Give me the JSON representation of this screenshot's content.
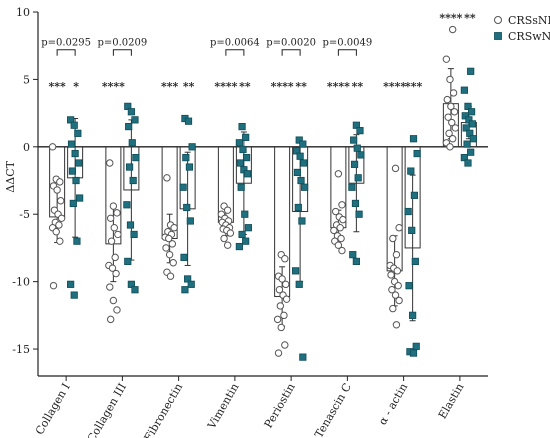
{
  "chart_data": {
    "type": "bar",
    "ylabel": "ΔΔCT",
    "ylim": [
      -17,
      10
    ],
    "yticks": [
      10,
      5,
      0,
      -5,
      -10,
      -15
    ],
    "categories": [
      "Collagen I",
      "Collagen III",
      "Fibronectin",
      "Vimentin",
      "Periostin",
      "Tenascin C",
      "α - actin",
      "Elastin"
    ],
    "legend": {
      "position": "top-right",
      "entries": [
        "CRSsNP",
        "CRSwNP"
      ]
    },
    "colors": {
      "CRSsNP": "#ffffff",
      "CRSwNP": "#1f6f7e",
      "marker_edge": "#555555"
    },
    "series": [
      {
        "name": "CRSsNP",
        "values": [
          -5.2,
          -7.2,
          -6.8,
          -5.6,
          -11.1,
          -6.0,
          -9.2,
          3.2
        ],
        "errors": [
          1.9,
          2.8,
          1.8,
          1.0,
          2.2,
          1.3,
          2.6,
          2.6
        ],
        "points": [
          [
            0.0,
            -2.4,
            -2.6,
            -2.9,
            -3.2,
            -4.0,
            -4.7,
            -5.0,
            -5.3,
            -5.6,
            -5.8,
            -6.0,
            -6.3,
            -7.0,
            -10.3
          ],
          [
            -1.2,
            -4.4,
            -4.9,
            -5.3,
            -6.0,
            -6.5,
            -7.0,
            -8.2,
            -8.8,
            -9.0,
            -9.4,
            -10.4,
            -11.4,
            -12.1,
            -12.8
          ],
          [
            -2.3,
            -5.8,
            -6.0,
            -6.3,
            -6.5,
            -6.7,
            -6.8,
            -7.2,
            -7.5,
            -8.0,
            -8.6,
            -9.3,
            -9.6
          ],
          [
            -4.4,
            -4.7,
            -5.0,
            -5.3,
            -5.5,
            -5.6,
            -5.8,
            -6.0,
            -6.1,
            -6.2,
            -6.4,
            -6.8,
            -7.3
          ],
          [
            -8.0,
            -8.3,
            -9.6,
            -9.8,
            -10.2,
            -10.6,
            -11.0,
            -11.3,
            -11.8,
            -12.5,
            -12.8,
            -13.4,
            -14.7,
            -15.3
          ],
          [
            -2.0,
            -4.3,
            -4.8,
            -5.2,
            -5.4,
            -5.8,
            -6.0,
            -6.2,
            -6.6,
            -6.8,
            -7.0,
            -7.3,
            -7.7
          ],
          [
            -1.6,
            -6.0,
            -6.8,
            -8.0,
            -8.8,
            -9.0,
            -9.2,
            -9.5,
            -10.0,
            -10.3,
            -10.6,
            -11.0,
            -11.4,
            -12.0,
            -13.2
          ],
          [
            8.7,
            6.5,
            5.0,
            4.0,
            3.5,
            3.0,
            2.6,
            2.2,
            1.8,
            1.4,
            1.0,
            0.6,
            0.3,
            0.0
          ]
        ]
      },
      {
        "name": "CRSwNP",
        "values": [
          -2.3,
          -3.2,
          -4.6,
          -2.7,
          -4.8,
          -2.7,
          -7.5,
          1.8
        ],
        "errors": [
          4.4,
          5.2,
          4.2,
          3.8,
          5.2,
          3.6,
          5.4,
          1.2
        ],
        "points": [
          [
            2.0,
            1.6,
            1.0,
            0.2,
            -0.5,
            -1.2,
            -1.8,
            -2.5,
            -3.8,
            -4.2,
            -7.0,
            -10.2,
            -11.0
          ],
          [
            3.0,
            2.6,
            2.0,
            1.5,
            0.3,
            -0.8,
            -1.5,
            -2.5,
            -4.3,
            -5.8,
            -6.5,
            -8.5,
            -10.2,
            -10.6
          ],
          [
            2.1,
            1.9,
            0.0,
            -0.8,
            -1.5,
            -3.0,
            -4.5,
            -5.5,
            -8.2,
            -9.8,
            -10.2,
            -10.6
          ],
          [
            1.5,
            0.7,
            0.3,
            -0.2,
            -0.8,
            -1.2,
            -1.7,
            -2.0,
            -3.0,
            -5.0,
            -6.0,
            -6.5,
            -7.0,
            -7.4
          ],
          [
            0.5,
            0.2,
            -0.3,
            -0.7,
            -1.2,
            -1.9,
            -2.5,
            -3.0,
            -4.5,
            -5.5,
            -9.2,
            -10.2,
            -15.6
          ],
          [
            1.6,
            1.2,
            0.5,
            -0.1,
            -0.6,
            -1.3,
            -2.3,
            -3.0,
            -4.2,
            -5.0,
            -8.0,
            -8.5
          ],
          [
            0.6,
            -0.5,
            -1.8,
            -3.6,
            -4.8,
            -6.2,
            -8.5,
            -10.3,
            -12.5,
            -14.8,
            -15.2,
            -15.3
          ],
          [
            5.6,
            4.2,
            3.0,
            2.6,
            2.3,
            2.0,
            1.7,
            1.4,
            1.0,
            0.6,
            0.2,
            -0.4,
            -0.8,
            -1.2
          ]
        ]
      }
    ],
    "significance": {
      "between_groups": [
        "p=0.0295",
        "p=0.0209",
        "",
        "p=0.0064",
        "p=0.0020",
        "p=0.0049",
        "",
        ""
      ],
      "CRSsNP_stars": [
        "***",
        "****",
        "***",
        "****",
        "****",
        "****",
        "****",
        "****"
      ],
      "CRSwNP_stars": [
        "*",
        "",
        "**",
        "**",
        "**",
        "**",
        "***",
        "**"
      ]
    }
  }
}
